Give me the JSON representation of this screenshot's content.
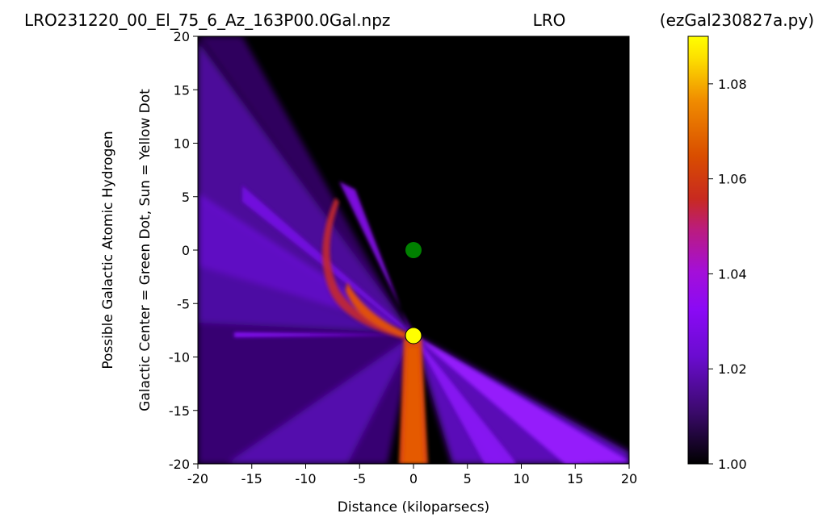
{
  "titles": {
    "left": "LRO231220_00_El_75_6_Az_163P00.0Gal.npz",
    "center": "LRO",
    "right": "(ezGal230827a.py)"
  },
  "chart_data": {
    "type": "heatmap",
    "xlabel": "Distance (kiloparsecs)",
    "ylabel_line1": "Possible Galactic Atomic Hydrogen",
    "ylabel_line2": "Galactic Center = Green Dot, Sun = Yellow Dot",
    "xlim": [
      -20,
      20
    ],
    "ylim": [
      -20,
      20
    ],
    "xticks": [
      -20,
      -15,
      -10,
      -5,
      0,
      5,
      10,
      15,
      20
    ],
    "yticks": [
      -20,
      -15,
      -10,
      -5,
      0,
      5,
      10,
      15,
      20
    ],
    "colormap": "gnuplot",
    "colorbar": {
      "min": 1.0,
      "max": 1.09,
      "ticks": [
        "1.00",
        "1.02",
        "1.04",
        "1.06",
        "1.08"
      ],
      "tick_values": [
        1.0,
        1.02,
        1.04,
        1.06,
        1.08
      ]
    },
    "markers": [
      {
        "name": "Galactic Center",
        "x": 0,
        "y": 0,
        "color": "#008000"
      },
      {
        "name": "Sun",
        "x": 0,
        "y": -8,
        "color": "#ffff00"
      }
    ],
    "background_color": "#000000"
  }
}
